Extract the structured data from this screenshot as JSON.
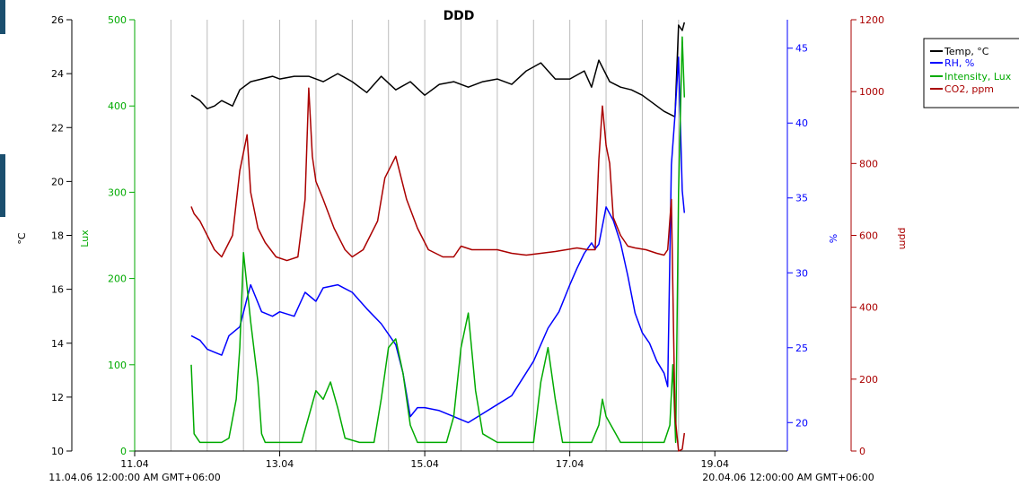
{
  "chart_data": {
    "type": "line",
    "title": "DDD",
    "x_range_start_label": "11.04.06 12:00:00 AM GMT+06:00",
    "x_range_end_label": "20.04.06 12:00:00 AM GMT+06:00",
    "x_ticks": [
      "11.04",
      "13.04",
      "15.04",
      "17.04",
      "19.04"
    ],
    "xlim": [
      11.0,
      20.0
    ],
    "grid_x": true,
    "legend_position": "top-right",
    "colors": {
      "temp": "#000000",
      "rh": "#0000ff",
      "lux": "#00aa00",
      "co2": "#aa0000",
      "axis": "#000000"
    },
    "axes": {
      "temp": {
        "label": "°C",
        "range": [
          10,
          26
        ],
        "ticks": [
          "10",
          "12",
          "14",
          "16",
          "18",
          "20",
          "22",
          "24",
          "26"
        ]
      },
      "lux": {
        "label": "Lux",
        "range": [
          0,
          500
        ],
        "ticks": [
          "0",
          "100",
          "200",
          "300",
          "400",
          "500"
        ]
      },
      "rh": {
        "label": "%",
        "range": [
          18.1,
          46.9
        ],
        "ticks": [
          "20",
          "25",
          "30",
          "35",
          "40",
          "45"
        ]
      },
      "co2": {
        "label": "ppm",
        "range": [
          0,
          1200
        ],
        "ticks": [
          "0",
          "200",
          "400",
          "600",
          "800",
          "1000",
          "1200"
        ]
      }
    },
    "series": [
      {
        "name": "Temp, °C",
        "key": "temp",
        "axis": "temp",
        "x": [
          11.78,
          11.9,
          12.0,
          12.1,
          12.2,
          12.35,
          12.45,
          12.6,
          12.75,
          12.9,
          13.0,
          13.2,
          13.4,
          13.6,
          13.8,
          14.0,
          14.2,
          14.4,
          14.6,
          14.8,
          15.0,
          15.2,
          15.4,
          15.6,
          15.8,
          16.0,
          16.2,
          16.4,
          16.6,
          16.8,
          17.0,
          17.2,
          17.3,
          17.4,
          17.55,
          17.7,
          17.85,
          18.0,
          18.2,
          18.3,
          18.45,
          18.5,
          18.55,
          18.58
        ],
        "y": [
          23.2,
          23.0,
          22.7,
          22.8,
          23.0,
          22.8,
          23.4,
          23.7,
          23.8,
          23.9,
          23.8,
          23.9,
          23.9,
          23.7,
          24.0,
          23.7,
          23.3,
          23.9,
          23.4,
          23.7,
          23.2,
          23.6,
          23.7,
          23.5,
          23.7,
          23.8,
          23.6,
          24.1,
          24.4,
          23.8,
          23.8,
          24.1,
          23.5,
          24.5,
          23.7,
          23.5,
          23.4,
          23.2,
          22.8,
          22.6,
          22.4,
          25.8,
          25.6,
          25.9
        ]
      },
      {
        "name": "RH, %",
        "key": "rh",
        "axis": "rh",
        "x": [
          11.78,
          11.9,
          12.0,
          12.1,
          12.2,
          12.3,
          12.45,
          12.55,
          12.6,
          12.75,
          12.9,
          13.0,
          13.2,
          13.35,
          13.5,
          13.6,
          13.8,
          14.0,
          14.2,
          14.4,
          14.6,
          14.7,
          14.8,
          14.9,
          15.0,
          15.2,
          15.4,
          15.6,
          15.8,
          16.0,
          16.2,
          16.5,
          16.7,
          16.85,
          17.0,
          17.1,
          17.2,
          17.3,
          17.35,
          17.4,
          17.5,
          17.6,
          17.7,
          17.8,
          17.9,
          18.0,
          18.1,
          18.2,
          18.3,
          18.35,
          18.4,
          18.45,
          18.5,
          18.55,
          18.58
        ],
        "y": [
          25.8,
          25.5,
          24.9,
          24.7,
          24.5,
          25.8,
          26.4,
          28.3,
          29.2,
          27.4,
          27.1,
          27.4,
          27.1,
          28.7,
          28.1,
          29.0,
          29.2,
          28.7,
          27.6,
          26.6,
          25.2,
          23.3,
          20.4,
          21.0,
          21.0,
          20.8,
          20.4,
          20.0,
          20.6,
          21.2,
          21.8,
          24.1,
          26.3,
          27.4,
          29.2,
          30.3,
          31.3,
          32.0,
          31.6,
          31.9,
          34.4,
          33.5,
          32.0,
          29.8,
          27.3,
          26.0,
          25.3,
          24.1,
          23.3,
          22.4,
          37.2,
          40.5,
          44.4,
          35.5,
          34.0
        ]
      },
      {
        "name": "Intensity, Lux",
        "key": "lux",
        "axis": "lux",
        "x": [
          11.78,
          11.82,
          11.9,
          12.2,
          12.3,
          12.4,
          12.45,
          12.5,
          12.55,
          12.6,
          12.7,
          12.75,
          12.8,
          13.0,
          13.3,
          13.4,
          13.5,
          13.6,
          13.7,
          13.8,
          13.9,
          14.1,
          14.3,
          14.4,
          14.5,
          14.6,
          14.7,
          14.8,
          14.9,
          15.1,
          15.3,
          15.4,
          15.5,
          15.6,
          15.7,
          15.8,
          16.0,
          16.3,
          16.5,
          16.6,
          16.7,
          16.8,
          16.9,
          17.1,
          17.3,
          17.4,
          17.45,
          17.5,
          17.7,
          18.1,
          18.3,
          18.38,
          18.42,
          18.46,
          18.5,
          18.55,
          18.58
        ],
        "y": [
          100,
          20,
          10,
          10,
          15,
          60,
          120,
          230,
          190,
          150,
          80,
          20,
          10,
          10,
          10,
          40,
          70,
          60,
          80,
          50,
          15,
          10,
          10,
          60,
          120,
          130,
          90,
          30,
          10,
          10,
          10,
          40,
          120,
          160,
          70,
          20,
          10,
          10,
          10,
          80,
          120,
          60,
          10,
          10,
          10,
          30,
          60,
          40,
          10,
          10,
          10,
          30,
          100,
          10,
          300,
          480,
          410
        ]
      },
      {
        "name": "CO2, ppm",
        "key": "co2",
        "axis": "co2",
        "x": [
          11.78,
          11.82,
          11.9,
          12.0,
          12.1,
          12.2,
          12.35,
          12.45,
          12.55,
          12.6,
          12.7,
          12.8,
          12.95,
          13.1,
          13.25,
          13.35,
          13.4,
          13.45,
          13.5,
          13.6,
          13.75,
          13.9,
          14.0,
          14.15,
          14.35,
          14.45,
          14.6,
          14.75,
          14.9,
          15.05,
          15.25,
          15.4,
          15.5,
          15.65,
          15.8,
          16.0,
          16.2,
          16.4,
          16.6,
          16.8,
          16.95,
          17.1,
          17.25,
          17.35,
          17.4,
          17.45,
          17.5,
          17.55,
          17.6,
          17.7,
          17.8,
          17.9,
          18.05,
          18.2,
          18.3,
          18.35,
          18.4,
          18.45,
          18.5,
          18.55,
          18.58
        ],
        "y": [
          680,
          660,
          640,
          600,
          560,
          540,
          600,
          780,
          880,
          720,
          620,
          580,
          540,
          530,
          540,
          700,
          1010,
          820,
          750,
          700,
          620,
          560,
          540,
          560,
          640,
          760,
          820,
          700,
          620,
          560,
          540,
          540,
          570,
          560,
          560,
          560,
          550,
          545,
          550,
          555,
          560,
          565,
          560,
          560,
          810,
          960,
          850,
          800,
          650,
          600,
          570,
          565,
          560,
          550,
          545,
          560,
          700,
          100,
          0,
          5,
          50
        ]
      }
    ]
  }
}
